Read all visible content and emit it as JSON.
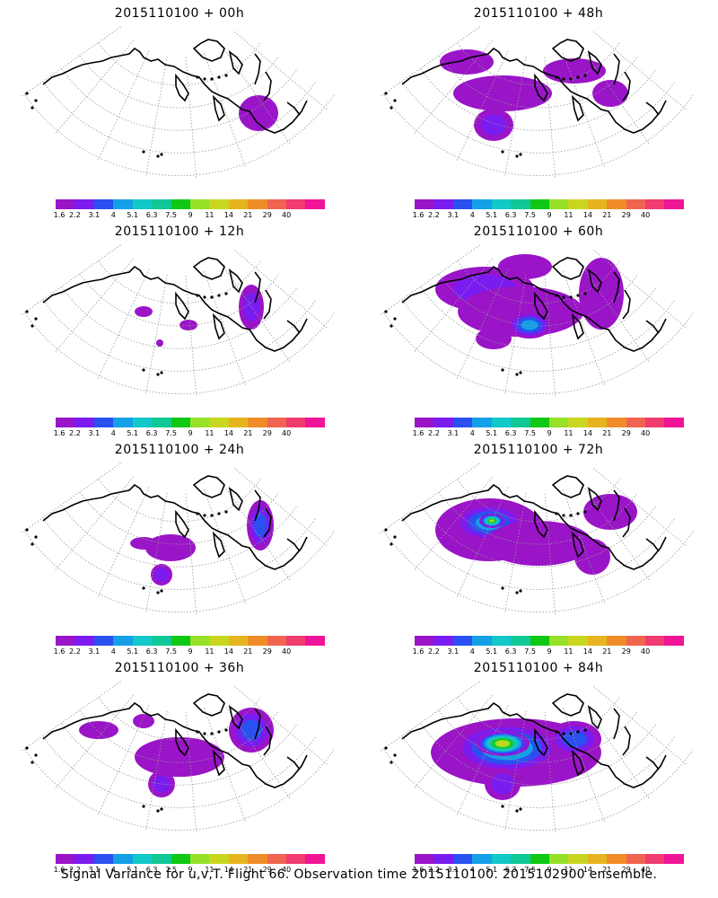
{
  "chart_data": [
    {
      "type": "heatmap",
      "title": "2015110100 + 00h",
      "blobs": [
        {
          "cx": 290,
          "cy": 100,
          "rx": 12,
          "ry": 10,
          "lvl": 11
        },
        {
          "cx": 288,
          "cy": 102,
          "rx": 22,
          "ry": 20,
          "lvl": 0
        }
      ]
    },
    {
      "type": "heatmap",
      "title": "2015110100 + 48h",
      "blobs": [
        {
          "cx": 120,
          "cy": 45,
          "rx": 30,
          "ry": 14,
          "lvl": 0
        },
        {
          "cx": 160,
          "cy": 80,
          "rx": 55,
          "ry": 20,
          "lvl": 0
        },
        {
          "cx": 150,
          "cy": 115,
          "rx": 22,
          "ry": 18,
          "lvl": 1
        },
        {
          "cx": 240,
          "cy": 55,
          "rx": 35,
          "ry": 14,
          "lvl": 0
        },
        {
          "cx": 280,
          "cy": 80,
          "rx": 20,
          "ry": 15,
          "lvl": 0
        }
      ]
    },
    {
      "type": "heatmap",
      "title": "2015110100 + 12h",
      "blobs": [
        {
          "cx": 280,
          "cy": 75,
          "rx": 14,
          "ry": 25,
          "lvl": 1
        },
        {
          "cx": 160,
          "cy": 80,
          "rx": 10,
          "ry": 6,
          "lvl": 0
        },
        {
          "cx": 210,
          "cy": 95,
          "rx": 10,
          "ry": 6,
          "lvl": 0
        },
        {
          "cx": 178,
          "cy": 115,
          "rx": 4,
          "ry": 4,
          "lvl": 0
        }
      ]
    },
    {
      "type": "heatmap",
      "title": "2015110100 + 60h",
      "blobs": [
        {
          "cx": 140,
          "cy": 55,
          "rx": 55,
          "ry": 25,
          "lvl": 1
        },
        {
          "cx": 180,
          "cy": 80,
          "rx": 70,
          "ry": 28,
          "lvl": 0
        },
        {
          "cx": 190,
          "cy": 95,
          "rx": 25,
          "ry": 15,
          "lvl": 3
        },
        {
          "cx": 270,
          "cy": 60,
          "rx": 25,
          "ry": 40,
          "lvl": 0
        },
        {
          "cx": 185,
          "cy": 30,
          "rx": 30,
          "ry": 14,
          "lvl": 0
        },
        {
          "cx": 150,
          "cy": 110,
          "rx": 20,
          "ry": 12,
          "lvl": 0
        }
      ]
    },
    {
      "type": "heatmap",
      "title": "2015110100 + 24h",
      "blobs": [
        {
          "cx": 290,
          "cy": 75,
          "rx": 15,
          "ry": 28,
          "lvl": 2
        },
        {
          "cx": 190,
          "cy": 100,
          "rx": 28,
          "ry": 15,
          "lvl": 0
        },
        {
          "cx": 180,
          "cy": 130,
          "rx": 12,
          "ry": 12,
          "lvl": 1
        },
        {
          "cx": 160,
          "cy": 95,
          "rx": 15,
          "ry": 7,
          "lvl": 0
        }
      ]
    },
    {
      "type": "heatmap",
      "title": "2015110100 + 72h",
      "blobs": [
        {
          "cx": 145,
          "cy": 80,
          "rx": 60,
          "ry": 35,
          "lvl": 0
        },
        {
          "cx": 145,
          "cy": 72,
          "rx": 40,
          "ry": 22,
          "lvl": 3
        },
        {
          "cx": 148,
          "cy": 70,
          "rx": 14,
          "ry": 8,
          "lvl": 7
        },
        {
          "cx": 200,
          "cy": 95,
          "rx": 60,
          "ry": 25,
          "lvl": 0
        },
        {
          "cx": 280,
          "cy": 60,
          "rx": 30,
          "ry": 20,
          "lvl": 0
        },
        {
          "cx": 260,
          "cy": 110,
          "rx": 20,
          "ry": 20,
          "lvl": 0
        }
      ]
    },
    {
      "type": "heatmap",
      "title": "2015110100 + 36h",
      "blobs": [
        {
          "cx": 110,
          "cy": 60,
          "rx": 22,
          "ry": 10,
          "lvl": 0
        },
        {
          "cx": 200,
          "cy": 90,
          "rx": 50,
          "ry": 22,
          "lvl": 0
        },
        {
          "cx": 180,
          "cy": 120,
          "rx": 15,
          "ry": 15,
          "lvl": 1
        },
        {
          "cx": 280,
          "cy": 60,
          "rx": 25,
          "ry": 25,
          "lvl": 2
        },
        {
          "cx": 160,
          "cy": 50,
          "rx": 12,
          "ry": 8,
          "lvl": 0
        }
      ]
    },
    {
      "type": "heatmap",
      "title": "2015110100 + 84h",
      "blobs": [
        {
          "cx": 175,
          "cy": 85,
          "rx": 95,
          "ry": 38,
          "lvl": 0
        },
        {
          "cx": 165,
          "cy": 80,
          "rx": 60,
          "ry": 28,
          "lvl": 4
        },
        {
          "cx": 160,
          "cy": 75,
          "rx": 30,
          "ry": 14,
          "lvl": 8
        },
        {
          "cx": 240,
          "cy": 70,
          "rx": 30,
          "ry": 20,
          "lvl": 2
        },
        {
          "cx": 160,
          "cy": 120,
          "rx": 20,
          "ry": 18,
          "lvl": 1
        }
      ]
    }
  ],
  "colorbar": {
    "colors": [
      "#9a14c8",
      "#7a1cf0",
      "#2a50f0",
      "#14a0e6",
      "#12c8c8",
      "#10c896",
      "#10c814",
      "#96e028",
      "#c8d620",
      "#e6b41e",
      "#f08c28",
      "#f06450",
      "#f03c6e",
      "#f01496"
    ],
    "labels": [
      "1.6",
      "2.2",
      "3.1",
      "4",
      "5.1",
      "6.3",
      "7.5",
      "9",
      "11",
      "14",
      "21",
      "29",
      "40"
    ]
  },
  "footer": "Signal Variance for u,v,T. Flight 66. Observation time 2015110100. 2015102900 ensemble."
}
